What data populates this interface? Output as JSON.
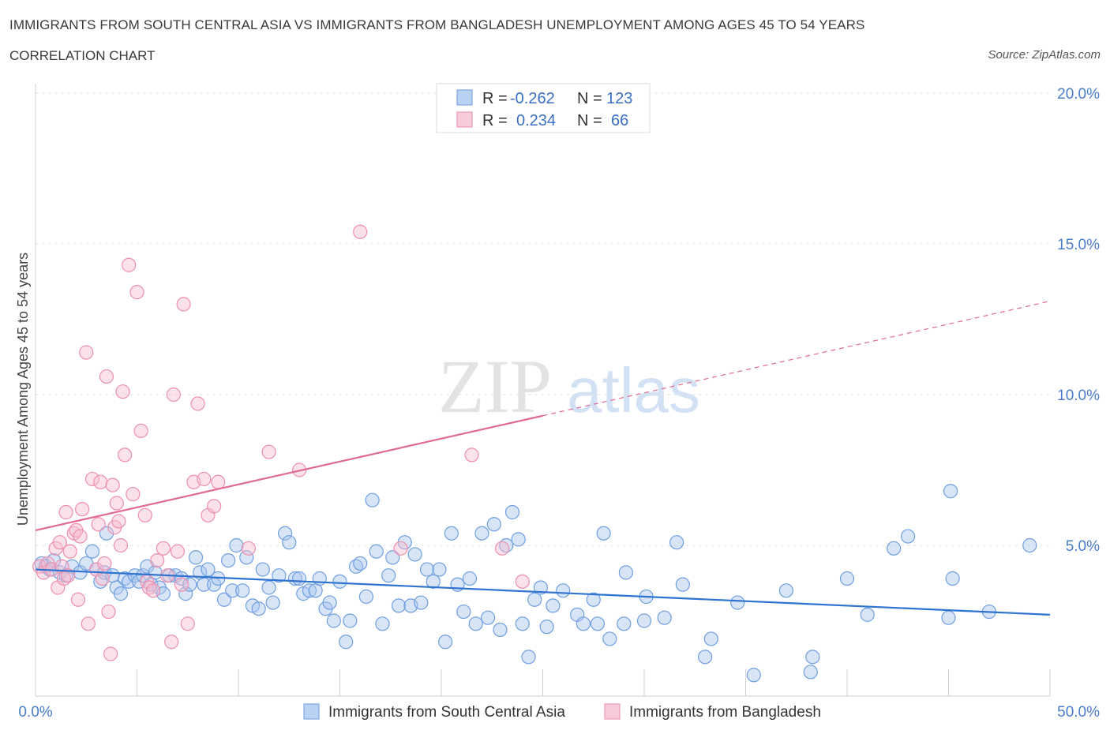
{
  "header": {
    "title": "IMMIGRANTS FROM SOUTH CENTRAL ASIA VS IMMIGRANTS FROM BANGLADESH UNEMPLOYMENT AMONG AGES 45 TO 54 YEARS",
    "subtitle": "CORRELATION CHART",
    "source": "Source: ZipAtlas.com"
  },
  "watermark": {
    "zip": "ZIP",
    "atlas": "atlas"
  },
  "legend": {
    "series1": {
      "r_label": "R =",
      "r_value": "-0.262",
      "n_label": "N =",
      "n_value": "123"
    },
    "series2": {
      "r_label": "R =",
      "r_value": "0.234",
      "n_label": "N =",
      "n_value": "66"
    }
  },
  "colors": {
    "blue_fill": "#a9c6ee",
    "blue_stroke": "#6f9fe0",
    "blue_line": "#2f73d0",
    "pink_fill": "#f6bcd0",
    "pink_stroke": "#ec8fae",
    "pink_line": "#e06a94"
  },
  "chart_data": {
    "type": "scatter",
    "title": "IMMIGRANTS FROM SOUTH CENTRAL ASIA VS IMMIGRANTS FROM BANGLADESH UNEMPLOYMENT AMONG AGES 45 TO 54 YEARS",
    "xlabel": "",
    "ylabel": "Unemployment Among Ages 45 to 54 years",
    "xlim": [
      0,
      50
    ],
    "ylim": [
      0,
      20
    ],
    "x_tick_labels": [
      "0.0%",
      "50.0%"
    ],
    "y_tick_labels": [
      "5.0%",
      "10.0%",
      "15.0%",
      "20.0%"
    ],
    "y_ticks": [
      5,
      10,
      15,
      20
    ],
    "grid": true,
    "legend_position": "top-center",
    "series": [
      {
        "name": "Immigrants from South Central Asia",
        "color": "#a9c6ee",
        "r": -0.262,
        "n": 123,
        "trend": {
          "x": [
            0,
            50
          ],
          "y": [
            4.2,
            2.7
          ],
          "dashed_from": null
        },
        "points": [
          [
            0.3,
            4.4
          ],
          [
            0.5,
            4.3
          ],
          [
            0.7,
            4.2
          ],
          [
            0.9,
            4.5
          ],
          [
            1.2,
            4.1
          ],
          [
            1.5,
            4.0
          ],
          [
            1.8,
            4.3
          ],
          [
            2.2,
            4.1
          ],
          [
            2.5,
            4.4
          ],
          [
            2.8,
            4.8
          ],
          [
            3.0,
            4.2
          ],
          [
            3.2,
            3.8
          ],
          [
            3.4,
            4.1
          ],
          [
            3.5,
            5.4
          ],
          [
            3.8,
            4.0
          ],
          [
            4.0,
            3.6
          ],
          [
            4.2,
            3.4
          ],
          [
            4.4,
            3.9
          ],
          [
            4.6,
            3.8
          ],
          [
            4.9,
            4.0
          ],
          [
            5.1,
            3.8
          ],
          [
            5.3,
            4.0
          ],
          [
            5.5,
            4.3
          ],
          [
            5.7,
            3.7
          ],
          [
            5.9,
            4.1
          ],
          [
            6.1,
            3.6
          ],
          [
            6.3,
            3.4
          ],
          [
            6.6,
            4.0
          ],
          [
            6.9,
            4.0
          ],
          [
            7.2,
            3.9
          ],
          [
            7.4,
            3.4
          ],
          [
            7.6,
            3.7
          ],
          [
            7.9,
            4.6
          ],
          [
            8.1,
            4.1
          ],
          [
            8.3,
            3.7
          ],
          [
            8.5,
            4.2
          ],
          [
            8.8,
            3.7
          ],
          [
            9.0,
            3.9
          ],
          [
            9.3,
            3.2
          ],
          [
            9.5,
            4.5
          ],
          [
            9.7,
            3.5
          ],
          [
            9.9,
            5.0
          ],
          [
            10.2,
            3.5
          ],
          [
            10.4,
            4.6
          ],
          [
            10.7,
            3.0
          ],
          [
            11.0,
            2.9
          ],
          [
            11.2,
            4.2
          ],
          [
            11.5,
            3.6
          ],
          [
            11.7,
            3.1
          ],
          [
            12.0,
            4.0
          ],
          [
            12.3,
            5.4
          ],
          [
            12.5,
            5.1
          ],
          [
            12.8,
            3.9
          ],
          [
            13.0,
            3.9
          ],
          [
            13.2,
            3.4
          ],
          [
            13.5,
            3.5
          ],
          [
            13.8,
            3.5
          ],
          [
            14.0,
            3.9
          ],
          [
            14.3,
            2.9
          ],
          [
            14.5,
            3.1
          ],
          [
            14.7,
            2.5
          ],
          [
            15.0,
            3.8
          ],
          [
            15.3,
            1.8
          ],
          [
            15.5,
            2.5
          ],
          [
            15.8,
            4.3
          ],
          [
            16.0,
            4.4
          ],
          [
            16.3,
            3.3
          ],
          [
            16.6,
            6.5
          ],
          [
            16.8,
            4.8
          ],
          [
            17.1,
            2.4
          ],
          [
            17.4,
            4.0
          ],
          [
            17.6,
            4.6
          ],
          [
            17.9,
            3.0
          ],
          [
            18.2,
            5.1
          ],
          [
            18.5,
            3.0
          ],
          [
            18.7,
            4.7
          ],
          [
            19.0,
            3.1
          ],
          [
            19.3,
            4.2
          ],
          [
            19.6,
            3.8
          ],
          [
            19.9,
            4.2
          ],
          [
            20.2,
            1.8
          ],
          [
            20.5,
            5.4
          ],
          [
            20.8,
            3.7
          ],
          [
            21.1,
            2.8
          ],
          [
            21.4,
            3.9
          ],
          [
            21.7,
            2.4
          ],
          [
            22.0,
            5.4
          ],
          [
            22.3,
            2.6
          ],
          [
            22.6,
            5.7
          ],
          [
            22.9,
            2.2
          ],
          [
            23.2,
            5.0
          ],
          [
            23.5,
            6.1
          ],
          [
            23.8,
            5.2
          ],
          [
            24.0,
            2.4
          ],
          [
            24.3,
            1.3
          ],
          [
            24.6,
            3.2
          ],
          [
            24.9,
            3.6
          ],
          [
            25.2,
            2.3
          ],
          [
            25.5,
            3.0
          ],
          [
            26.0,
            3.5
          ],
          [
            26.7,
            2.7
          ],
          [
            27.0,
            2.4
          ],
          [
            27.5,
            3.2
          ],
          [
            27.7,
            2.4
          ],
          [
            28.0,
            5.4
          ],
          [
            28.3,
            1.9
          ],
          [
            29.0,
            2.4
          ],
          [
            29.1,
            4.1
          ],
          [
            30.0,
            2.5
          ],
          [
            30.1,
            3.3
          ],
          [
            31.0,
            2.6
          ],
          [
            31.6,
            5.1
          ],
          [
            31.9,
            3.7
          ],
          [
            33.0,
            1.3
          ],
          [
            33.3,
            1.9
          ],
          [
            34.6,
            3.1
          ],
          [
            35.4,
            0.7
          ],
          [
            37.0,
            3.5
          ],
          [
            38.2,
            0.8
          ],
          [
            38.3,
            1.3
          ],
          [
            40.0,
            3.9
          ],
          [
            41.0,
            2.7
          ],
          [
            42.3,
            4.9
          ],
          [
            43.0,
            5.3
          ],
          [
            45.0,
            2.6
          ],
          [
            45.1,
            6.8
          ],
          [
            45.2,
            3.9
          ],
          [
            47.0,
            2.8
          ],
          [
            49.0,
            5.0
          ]
        ]
      },
      {
        "name": "Immigrants from Bangladesh",
        "color": "#f6bcd0",
        "r": 0.234,
        "n": 66,
        "trend": {
          "x": [
            0,
            50
          ],
          "y": [
            5.5,
            13.1
          ],
          "dashed_from": 25
        },
        "points": [
          [
            0.2,
            4.3
          ],
          [
            0.4,
            4.1
          ],
          [
            0.6,
            4.4
          ],
          [
            0.8,
            4.2
          ],
          [
            1.0,
            4.9
          ],
          [
            1.1,
            3.6
          ],
          [
            1.2,
            5.1
          ],
          [
            1.3,
            4.3
          ],
          [
            1.4,
            3.9
          ],
          [
            1.5,
            6.1
          ],
          [
            1.6,
            4.0
          ],
          [
            1.7,
            4.8
          ],
          [
            1.9,
            5.4
          ],
          [
            2.0,
            5.5
          ],
          [
            2.1,
            3.2
          ],
          [
            2.2,
            5.3
          ],
          [
            2.3,
            6.2
          ],
          [
            2.5,
            11.4
          ],
          [
            2.6,
            2.4
          ],
          [
            2.8,
            7.2
          ],
          [
            3.0,
            4.2
          ],
          [
            3.1,
            5.7
          ],
          [
            3.2,
            7.1
          ],
          [
            3.3,
            3.9
          ],
          [
            3.4,
            4.4
          ],
          [
            3.5,
            10.6
          ],
          [
            3.6,
            2.8
          ],
          [
            3.7,
            1.4
          ],
          [
            3.8,
            7.0
          ],
          [
            3.9,
            5.6
          ],
          [
            4.0,
            6.4
          ],
          [
            4.1,
            5.8
          ],
          [
            4.2,
            5.0
          ],
          [
            4.3,
            10.1
          ],
          [
            4.4,
            8.0
          ],
          [
            4.6,
            14.3
          ],
          [
            4.8,
            6.7
          ],
          [
            5.0,
            13.4
          ],
          [
            5.2,
            8.8
          ],
          [
            5.4,
            6.0
          ],
          [
            5.5,
            3.8
          ],
          [
            5.6,
            3.6
          ],
          [
            5.8,
            3.5
          ],
          [
            6.0,
            4.5
          ],
          [
            6.3,
            4.9
          ],
          [
            6.5,
            4.0
          ],
          [
            6.7,
            1.8
          ],
          [
            6.8,
            10.0
          ],
          [
            7.0,
            4.8
          ],
          [
            7.2,
            3.7
          ],
          [
            7.3,
            13.0
          ],
          [
            7.5,
            2.4
          ],
          [
            7.8,
            7.1
          ],
          [
            8.0,
            9.7
          ],
          [
            8.3,
            7.2
          ],
          [
            8.5,
            6.0
          ],
          [
            8.8,
            6.3
          ],
          [
            9.0,
            7.1
          ],
          [
            10.5,
            4.9
          ],
          [
            11.5,
            8.1
          ],
          [
            13.0,
            7.5
          ],
          [
            16.0,
            15.4
          ],
          [
            18.0,
            4.9
          ],
          [
            21.5,
            8.0
          ],
          [
            23.0,
            4.9
          ],
          [
            24.0,
            3.8
          ]
        ]
      }
    ]
  },
  "bottom_legend": {
    "item1": "Immigrants from South Central Asia",
    "item2": "Immigrants from Bangladesh"
  }
}
